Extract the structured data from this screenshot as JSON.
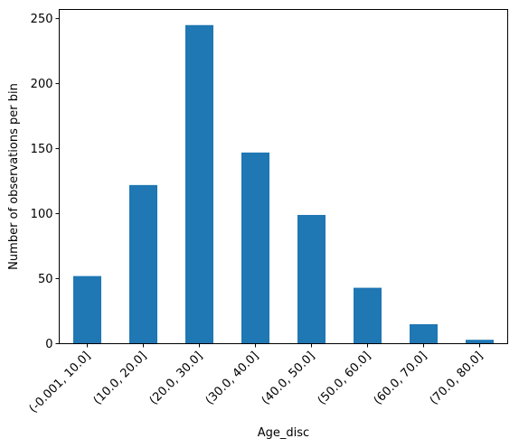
{
  "chart_data": {
    "type": "bar",
    "categories": [
      "(-0.001, 10.0]",
      "(10.0, 20.0]",
      "(20.0, 30.0]",
      "(30.0, 40.0]",
      "(40.0, 50.0]",
      "(50.0, 60.0]",
      "(60.0, 70.0]",
      "(70.0, 80.0]"
    ],
    "values": [
      52,
      122,
      245,
      147,
      99,
      43,
      15,
      3
    ],
    "xlabel": "Age_disc",
    "ylabel": "Number of observations per bin",
    "ylim": [
      0,
      257
    ],
    "yticks": [
      0,
      50,
      100,
      150,
      200,
      250
    ],
    "bar_color": "#1f77b4",
    "grid": false,
    "legend": "none"
  }
}
